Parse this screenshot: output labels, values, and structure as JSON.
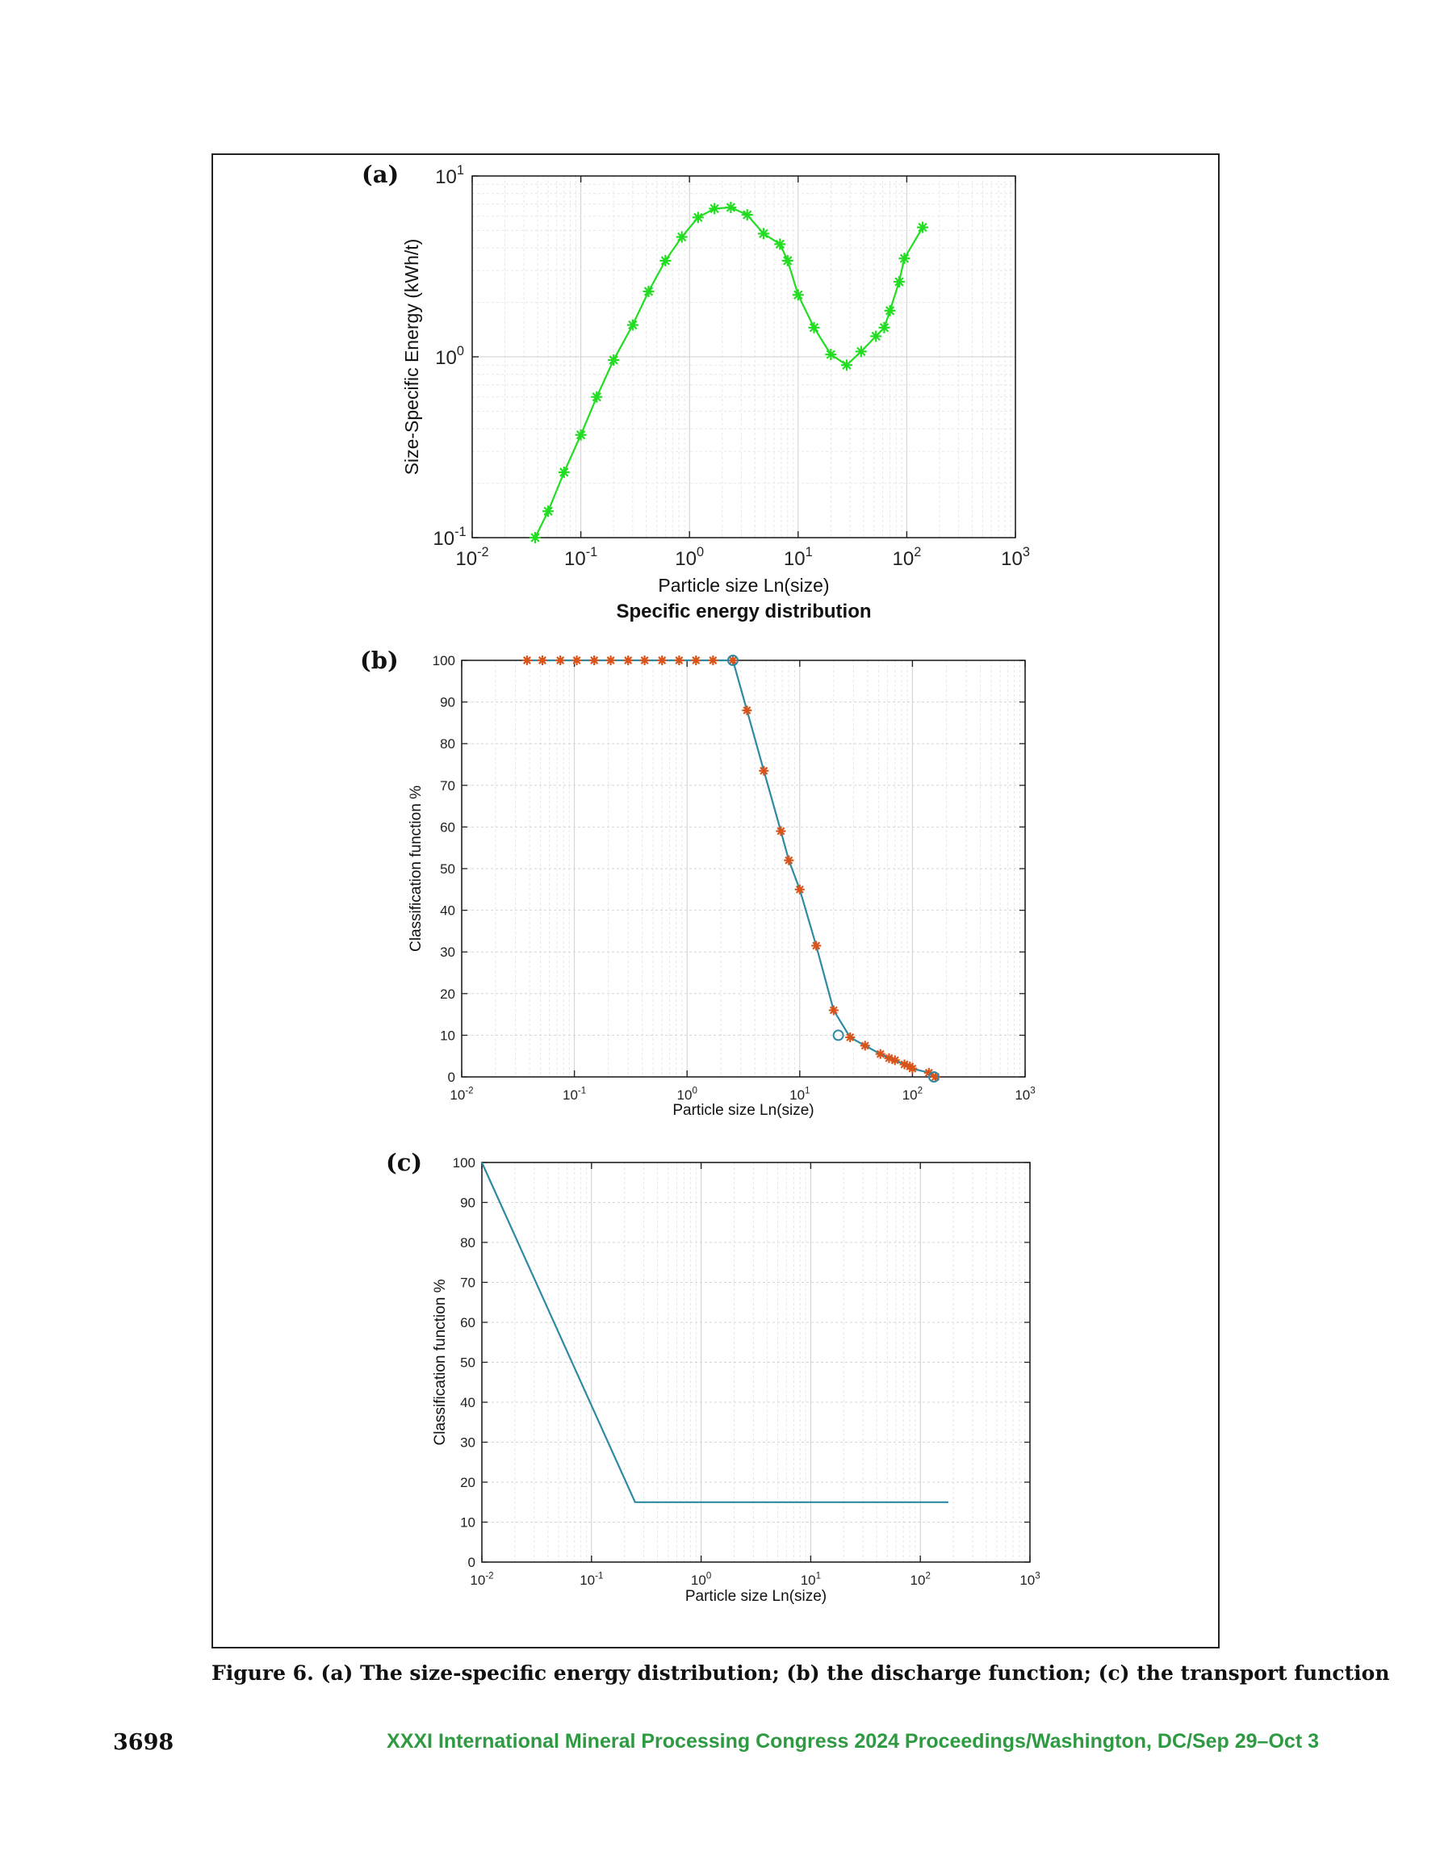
{
  "chart_data": [
    {
      "panel": "(a)",
      "type": "line",
      "title": "Specific energy distribution",
      "xlabel": "Particle size Ln(size)",
      "ylabel": "Size-Specific Energy (kWh/t)",
      "xscale": "log",
      "yscale": "log",
      "xlim": [
        0.01,
        1000
      ],
      "ylim": [
        0.1,
        10
      ],
      "xticks": [
        [
          "10",
          "-2"
        ],
        [
          "10",
          "-1"
        ],
        [
          "10",
          "0"
        ],
        [
          "10",
          "1"
        ],
        [
          "10",
          "2"
        ],
        [
          "10",
          "3"
        ]
      ],
      "yticks": [
        [
          "10",
          "-1"
        ],
        [
          "10",
          "0"
        ],
        [
          "10",
          "1"
        ]
      ],
      "grid": "major and minor",
      "color": "#22dd22",
      "marker": "*",
      "series": [
        {
          "x": [
            0.038,
            0.05,
            0.07,
            0.1,
            0.14,
            0.2,
            0.3,
            0.42,
            0.6,
            0.85,
            1.2,
            1.7,
            2.4,
            3.4,
            4.8,
            6.8,
            8.0,
            10,
            14,
            20,
            28,
            38,
            52,
            62,
            70,
            85,
            95,
            140
          ],
          "y": [
            0.1,
            0.14,
            0.23,
            0.37,
            0.6,
            0.96,
            1.5,
            2.3,
            3.4,
            4.6,
            5.9,
            6.6,
            6.7,
            6.1,
            4.8,
            4.2,
            3.4,
            2.2,
            1.45,
            1.03,
            0.9,
            1.07,
            1.3,
            1.45,
            1.8,
            2.6,
            3.5,
            5.2
          ]
        }
      ]
    },
    {
      "panel": "(b)",
      "type": "line",
      "title": "",
      "xlabel": "Particle size Ln(size)",
      "ylabel": "Classification function %",
      "xscale": "log",
      "xlim": [
        0.01,
        1000
      ],
      "ylim": [
        0,
        100
      ],
      "xticks": [
        [
          "10",
          "-2"
        ],
        [
          "10",
          "-1"
        ],
        [
          "10",
          "0"
        ],
        [
          "10",
          "1"
        ],
        [
          "10",
          "2"
        ],
        [
          "10",
          "3"
        ]
      ],
      "yticks": [
        0,
        10,
        20,
        30,
        40,
        50,
        60,
        70,
        80,
        90,
        100
      ],
      "grid": "major and minor",
      "line_color": "#2e8aa3",
      "marker_color": "#d9541a",
      "series": [
        {
          "x": [
            0.038,
            0.052,
            0.075,
            0.105,
            0.15,
            0.21,
            0.3,
            0.42,
            0.6,
            0.85,
            1.2,
            1.7,
            2.55,
            3.4,
            4.8,
            6.8,
            8.0,
            10,
            14,
            20,
            28,
            38,
            52,
            62,
            70,
            85,
            95,
            100,
            140,
            160
          ],
          "y": [
            100,
            100,
            100,
            100,
            100,
            100,
            100,
            100,
            100,
            100,
            100,
            100,
            100,
            88,
            73.5,
            59,
            52,
            45,
            31.5,
            16,
            9.5,
            7.5,
            5.5,
            4.5,
            4,
            3,
            2.5,
            2,
            1,
            0
          ]
        }
      ],
      "circle_points": [
        [
          2.55,
          100
        ],
        [
          22,
          10
        ],
        [
          155,
          0
        ]
      ]
    },
    {
      "panel": "(c)",
      "type": "line",
      "title": "",
      "xlabel": "Particle size Ln(size)",
      "ylabel": "Classification function %",
      "xscale": "log",
      "xlim": [
        0.01,
        1000
      ],
      "ylim": [
        0,
        100
      ],
      "xticks": [
        [
          "10",
          "-2"
        ],
        [
          "10",
          "-1"
        ],
        [
          "10",
          "0"
        ],
        [
          "10",
          "1"
        ],
        [
          "10",
          "2"
        ],
        [
          "10",
          "3"
        ]
      ],
      "yticks": [
        0,
        10,
        20,
        30,
        40,
        50,
        60,
        70,
        80,
        90,
        100
      ],
      "grid": "major and minor",
      "line_color": "#2e8aa3",
      "series": [
        {
          "x": [
            0.01,
            0.25,
            180
          ],
          "y": [
            100,
            15,
            15
          ]
        }
      ]
    }
  ],
  "caption": "Figure 6. (a) The size-specific energy distribution; (b) the discharge function; (c) the transport function",
  "footer": {
    "page_number": "3698",
    "proceedings": "XXXI International Mineral Processing Congress 2024 Proceedings/Washington, DC/Sep 29–Oct 3"
  }
}
